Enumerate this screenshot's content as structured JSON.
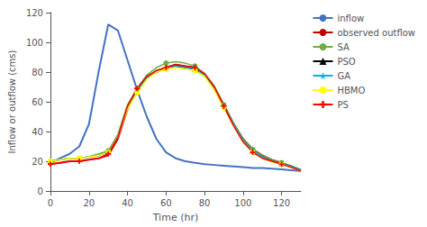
{
  "chart_data": {
    "type": "line",
    "xlabel": "Time (hr)",
    "ylabel": "Inflow or outflow (cms)",
    "xlim": [
      0,
      130
    ],
    "ylim": [
      0,
      120
    ],
    "xticks": [
      0,
      20,
      40,
      60,
      80,
      100,
      120
    ],
    "yticks": [
      0,
      20,
      40,
      60,
      80,
      100,
      120
    ],
    "grid": false,
    "legend": "right",
    "x": [
      0,
      5,
      10,
      15,
      20,
      25,
      30,
      35,
      40,
      45,
      50,
      55,
      60,
      65,
      70,
      75,
      80,
      85,
      90,
      95,
      100,
      105,
      110,
      115,
      120,
      125,
      130
    ],
    "series": [
      {
        "name": "inflow",
        "color": "#4472c4",
        "values": [
          19,
          22,
          25,
          30,
          45,
          80,
          112,
          108,
          88,
          68,
          50,
          35,
          26,
          22,
          20,
          19,
          18,
          17.5,
          17,
          16.5,
          16,
          15.5,
          15.5,
          15,
          14.5,
          14,
          13.5
        ]
      },
      {
        "name": "observed outflow",
        "color": "#c00000",
        "values": [
          18,
          19,
          20,
          20,
          21,
          22,
          24,
          35,
          55,
          68,
          76,
          80,
          83,
          85,
          84,
          83,
          78,
          70,
          58,
          45,
          35,
          28,
          24,
          21,
          19,
          16,
          14
        ]
      },
      {
        "name": "SA",
        "color": "#70ad47",
        "marker": "circle",
        "values": [
          20,
          21,
          22,
          22,
          23,
          25,
          27,
          38,
          58,
          69,
          78,
          83,
          86,
          87,
          86,
          84,
          79,
          71,
          58,
          46,
          35,
          28,
          24,
          21,
          19,
          17,
          14.5
        ]
      },
      {
        "name": "PSO",
        "color": "#000000",
        "marker": "triangle",
        "values": [
          20,
          21,
          22,
          22,
          23,
          24,
          26,
          36,
          56,
          67,
          76,
          81,
          83,
          84,
          83,
          82,
          78,
          69,
          57,
          45,
          34,
          27,
          23,
          20,
          18.5,
          16.5,
          14
        ]
      },
      {
        "name": "GA",
        "color": "#00b0f0",
        "marker": "star",
        "values": [
          20,
          21,
          22,
          22,
          23,
          24,
          26,
          36,
          56,
          67,
          76,
          81,
          83,
          84,
          83,
          82,
          78,
          69,
          57,
          45,
          34,
          27,
          23,
          20,
          18.5,
          16.5,
          14
        ]
      },
      {
        "name": "HBMO",
        "color": "#ffff00",
        "marker": "circle",
        "values": [
          20,
          21,
          22,
          22,
          23,
          24,
          26,
          36,
          55,
          66,
          75,
          80,
          82,
          83,
          82,
          81,
          77,
          68,
          56,
          44,
          33,
          26,
          22,
          19.5,
          18,
          16,
          13.5
        ]
      },
      {
        "name": "PS",
        "color": "#ff0000",
        "marker": "plus",
        "values": [
          18,
          19,
          20,
          20,
          21,
          22,
          25,
          36,
          57,
          69,
          77,
          81,
          83,
          85,
          84,
          83,
          79,
          70,
          57,
          44,
          33,
          26,
          22,
          20,
          18,
          16,
          13.5
        ]
      }
    ]
  }
}
